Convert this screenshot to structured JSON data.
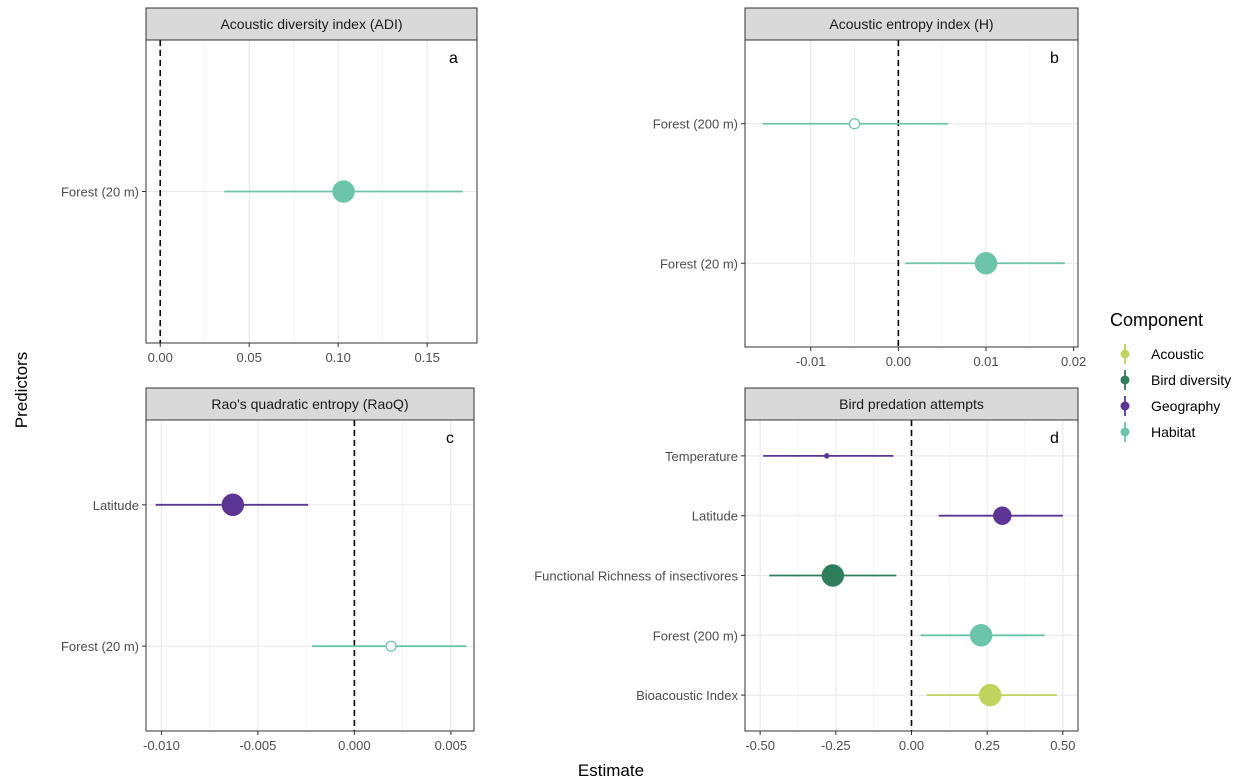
{
  "figure": {
    "xlabel": "Estimate",
    "ylabel": "Predictors"
  },
  "legend": {
    "title": "Component",
    "items": [
      {
        "label": "Acoustic",
        "color": "#bfd35e"
      },
      {
        "label": "Bird diversity",
        "color": "#2e7d5b"
      },
      {
        "label": "Geography",
        "color": "#5c3494"
      },
      {
        "label": "Habitat",
        "color": "#6cc4a9"
      }
    ]
  },
  "chart_data": [
    {
      "type": "scatter",
      "panel": "a",
      "title": "Acoustic diversity index (ADI)",
      "xlim": [
        -0.008,
        0.178
      ],
      "xticks": [
        0.0,
        0.05,
        0.1,
        0.15
      ],
      "xtick_labels": [
        "0.00",
        "0.05",
        "0.10",
        "0.15"
      ],
      "categories": [
        "Forest (20 m)"
      ],
      "points": [
        {
          "label": "Forest (20 m)",
          "component": "Habitat",
          "estimate": 0.103,
          "low": 0.036,
          "high": 0.17,
          "size": "large",
          "filled": true
        }
      ]
    },
    {
      "type": "scatter",
      "panel": "b",
      "title": "Acoustic entropy index (H)",
      "xlim": [
        -0.0175,
        0.0205
      ],
      "xticks": [
        -0.01,
        0.0,
        0.01,
        0.02
      ],
      "xtick_labels": [
        "-0.01",
        "0.00",
        "0.01",
        "0.02"
      ],
      "categories": [
        "Forest (20 m)",
        "Forest (200 m)"
      ],
      "points": [
        {
          "label": "Forest (20 m)",
          "component": "Habitat",
          "estimate": 0.01,
          "low": 0.0008,
          "high": 0.019,
          "size": "large",
          "filled": true
        },
        {
          "label": "Forest (200 m)",
          "component": "Habitat",
          "estimate": -0.005,
          "low": -0.0155,
          "high": 0.0057,
          "size": "small",
          "filled": false
        }
      ]
    },
    {
      "type": "scatter",
      "panel": "c",
      "title": "Rao's quadratic entropy (RaoQ)",
      "xlim": [
        -0.0108,
        0.0062
      ],
      "xticks": [
        -0.01,
        -0.005,
        0.0,
        0.005
      ],
      "xtick_labels": [
        "-0.010",
        "-0.005",
        "0.000",
        "0.005"
      ],
      "categories": [
        "Forest (20 m)",
        "Latitude"
      ],
      "points": [
        {
          "label": "Latitude",
          "component": "Geography",
          "estimate": -0.0063,
          "low": -0.0103,
          "high": -0.0024,
          "size": "large",
          "filled": true
        },
        {
          "label": "Forest (20 m)",
          "component": "Habitat",
          "estimate": 0.0019,
          "low": -0.0022,
          "high": 0.0058,
          "size": "small",
          "filled": false
        }
      ]
    },
    {
      "type": "scatter",
      "panel": "d",
      "title": "Bird predation attempts",
      "xlim": [
        -0.55,
        0.55
      ],
      "xticks": [
        -0.5,
        -0.25,
        0.0,
        0.25,
        0.5
      ],
      "xtick_labels": [
        "-0.50",
        "-0.25",
        "0.00",
        "0.25",
        "0.50"
      ],
      "categories": [
        "Bioacoustic Index",
        "Forest (200 m)",
        "Functional Richness of insectivores",
        "Latitude",
        "Temperature"
      ],
      "points": [
        {
          "label": "Temperature",
          "component": "Geography",
          "estimate": -0.28,
          "low": -0.49,
          "high": -0.06,
          "size": "tiny",
          "filled": true
        },
        {
          "label": "Latitude",
          "component": "Geography",
          "estimate": 0.3,
          "low": 0.09,
          "high": 0.5,
          "size": "medium",
          "filled": true
        },
        {
          "label": "Functional Richness of insectivores",
          "component": "Bird diversity",
          "estimate": -0.26,
          "low": -0.47,
          "high": -0.05,
          "size": "large",
          "filled": true
        },
        {
          "label": "Forest (200 m)",
          "component": "Habitat",
          "estimate": 0.23,
          "low": 0.03,
          "high": 0.44,
          "size": "large",
          "filled": true
        },
        {
          "label": "Bioacoustic Index",
          "component": "Acoustic",
          "estimate": 0.26,
          "low": 0.05,
          "high": 0.48,
          "size": "large",
          "filled": true
        }
      ]
    }
  ]
}
